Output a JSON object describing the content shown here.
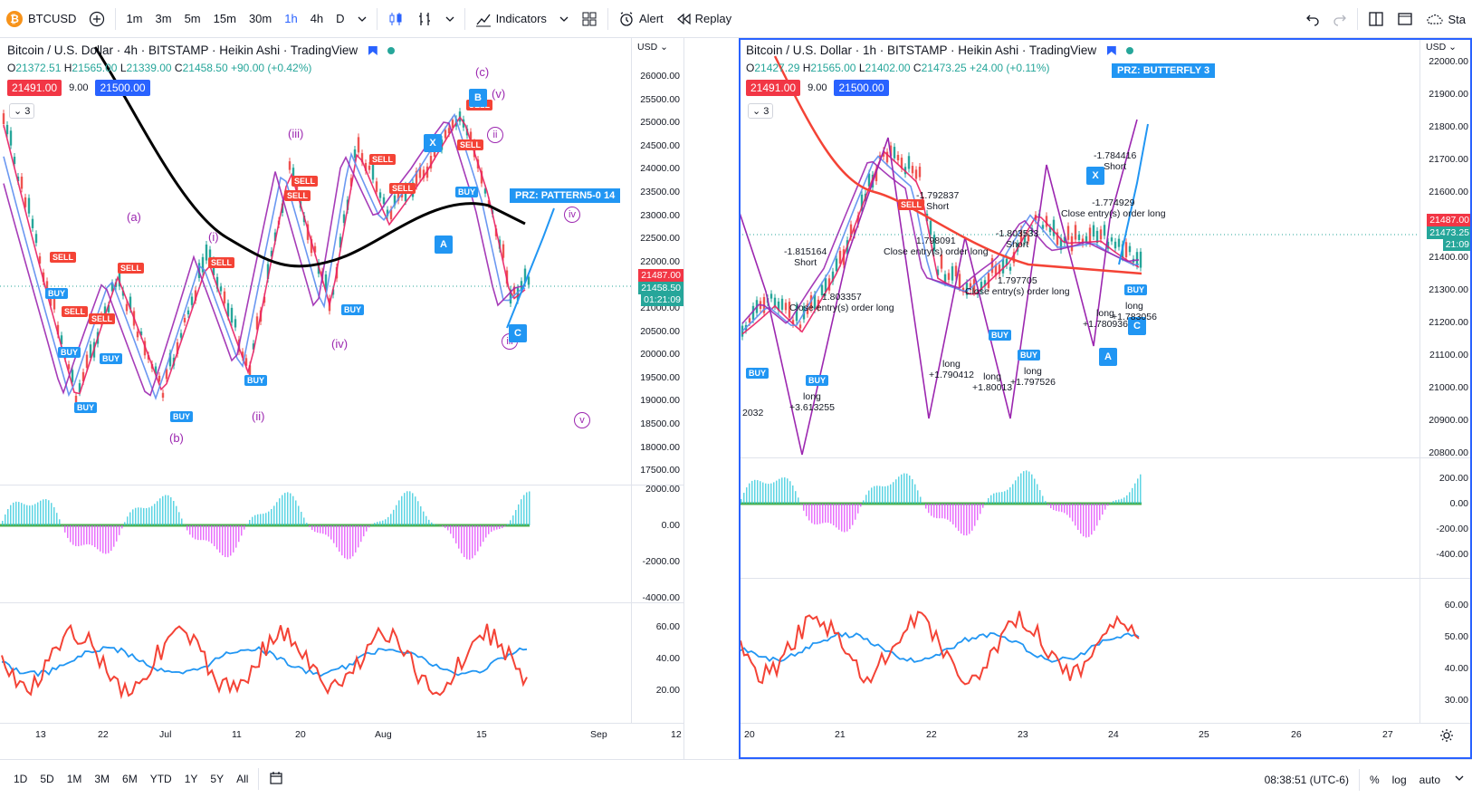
{
  "toolbar": {
    "symbol": "BTCUSD",
    "btc_icon": "₿",
    "intervals": [
      "1m",
      "3m",
      "5m",
      "15m",
      "30m",
      "1h",
      "4h",
      "D"
    ],
    "active_interval": "1h",
    "indicators": "Indicators",
    "alert": "Alert",
    "replay": "Replay",
    "right_label": "Sta"
  },
  "left_chart": {
    "title": "Bitcoin / U.S. Dollar · 4h · BITSTAMP · Heikin Ashi · TradingView",
    "ohlc": {
      "o": "21372.51",
      "h": "21565.00",
      "l": "21339.00",
      "c": "21458.50",
      "chg": "+90.00 (+0.42%)"
    },
    "price_red": "21491.00",
    "price_mid": "9.00",
    "price_blue": "21500.00",
    "collapse": "3",
    "yaxis_label": "USD",
    "yticks": [
      "26000.00",
      "25500.00",
      "25000.00",
      "24500.00",
      "24000.00",
      "23500.00",
      "23000.00",
      "22500.00",
      "22000.00",
      "21500.00",
      "21000.00",
      "20500.00",
      "20000.00",
      "19500.00",
      "19000.00",
      "18500.00",
      "18000.00",
      "17500.00"
    ],
    "osc_ticks": [
      "2000.00",
      "0.00",
      "-2000.00",
      "-4000.00"
    ],
    "rsi_ticks": [
      "60.00",
      "40.00",
      "20.00"
    ],
    "tags": {
      "red": "21487.00",
      "green": "21458.50",
      "timer": "01:21:09"
    },
    "xticks": [
      "13",
      "22",
      "Jul",
      "11",
      "20",
      "Aug",
      "15",
      "Sep",
      "12"
    ],
    "waves": [
      "(a)",
      "(b)",
      "(c)",
      "(i)",
      "(ii)",
      "(iii)",
      "(iv)",
      "(v)"
    ],
    "wavec": [
      "ii",
      "iv",
      "iii",
      "v"
    ],
    "prz": "PRZ: PATTERN5-0 14",
    "buy": "BUY",
    "sell": "SELL",
    "letters": [
      "X",
      "A",
      "B",
      "C"
    ]
  },
  "right_chart": {
    "title": "Bitcoin / U.S. Dollar · 1h · BITSTAMP · Heikin Ashi · TradingView",
    "ohlc": {
      "o": "21427.29",
      "h": "21565.00",
      "l": "21402.00",
      "c": "21473.25",
      "chg": "+24.00 (+0.11%)"
    },
    "price_red": "21491.00",
    "price_mid": "9.00",
    "price_blue": "21500.00",
    "collapse": "3",
    "yaxis_label": "USD",
    "yticks": [
      "22000.00",
      "21900.00",
      "21800.00",
      "21700.00",
      "21600.00",
      "21500.00",
      "21400.00",
      "21300.00",
      "21200.00",
      "21100.00",
      "21000.00",
      "20900.00",
      "20800.00"
    ],
    "osc_ticks": [
      "200.00",
      "0.00",
      "-200.00",
      "-400.00"
    ],
    "rsi_ticks": [
      "60.00",
      "50.00",
      "40.00",
      "30.00"
    ],
    "tags": {
      "red": "21487.00",
      "green": "21473.25",
      "timer": "21:09"
    },
    "xticks": [
      "20",
      "21",
      "22",
      "23",
      "24",
      "25",
      "26",
      "27"
    ],
    "prz": "PRZ: BUTTERFLY 3",
    "letters": [
      "X",
      "A",
      "C"
    ],
    "annotations": {
      "a1": "-1.815164",
      "short": "Short",
      "a2": "-1.792837",
      "a3": "-1.803533",
      "a4": "-1.784416",
      "close_long": "Close entry(s) order long",
      "a5": "1.803357",
      "a6": "1.798091",
      "a7": "1.797705",
      "a8": "-1.774929",
      "long": "long",
      "a9": "+3.613255",
      "a10": "+1.790412",
      "a11": "+1.80013",
      "a12": "+1.797526",
      "a13": "+1.780936",
      "a14": "+1.783056",
      "a15": "2032",
      "buy": "BUY",
      "sell": "SELL"
    }
  },
  "bottombar": {
    "ranges": [
      "1D",
      "5D",
      "1M",
      "3M",
      "6M",
      "YTD",
      "1Y",
      "5Y",
      "All"
    ],
    "time": "08:38:51 (UTC-6)",
    "pct": "%",
    "log": "log",
    "auto": "auto"
  },
  "colors": {
    "accent": "#2962ff",
    "red": "#f23645",
    "green": "#26a69a"
  }
}
